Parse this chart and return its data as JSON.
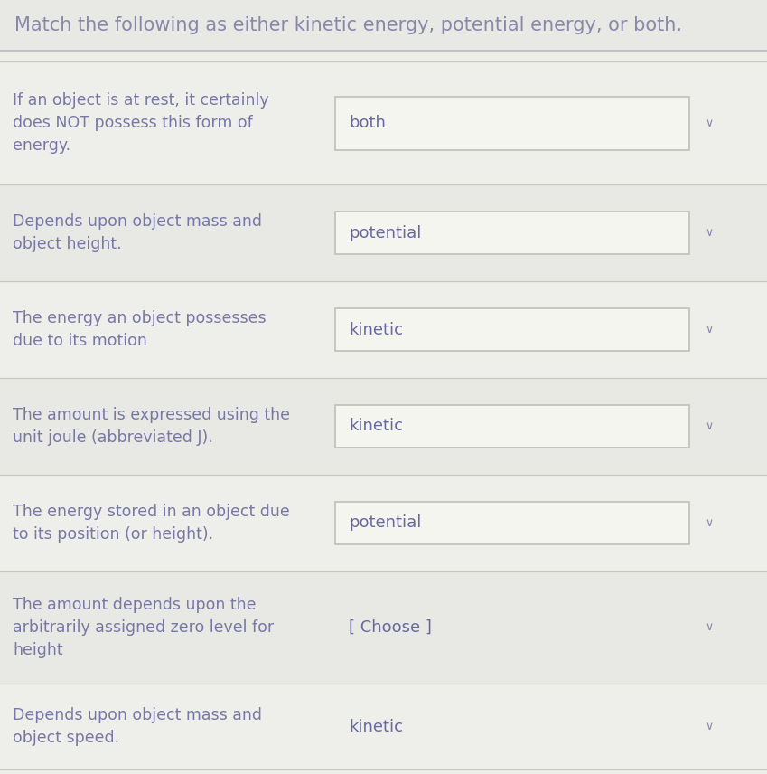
{
  "title": "Match the following as either kinetic energy, potential energy, or both.",
  "title_fontsize": 15,
  "title_color": "#8888aa",
  "bg_main": "#eeeee8",
  "bg_title": "#e8e8e4",
  "bg_row_light": "#eeeeea",
  "bg_row_dark": "#e4e4e0",
  "rows": [
    {
      "question": "If an object is at rest, it certainly\ndoes NOT possess this form of\nenergy.",
      "answer": "both",
      "has_box": true,
      "row_bg": "#eeeeea"
    },
    {
      "question": "Depends upon object mass and\nobject height.",
      "answer": "potential",
      "has_box": true,
      "row_bg": "#e8e8e4"
    },
    {
      "question": "The energy an object possesses\ndue to its motion",
      "answer": "kinetic",
      "has_box": true,
      "row_bg": "#eeeeea"
    },
    {
      "question": "The amount is expressed using the\nunit joule (abbreviated J).",
      "answer": "kinetic",
      "has_box": true,
      "row_bg": "#e8e8e4"
    },
    {
      "question": "The energy stored in an object due\nto its position (or height).",
      "answer": "potential",
      "has_box": true,
      "row_bg": "#eeeeea"
    },
    {
      "question": "The amount depends upon the\narbitrarily assigned zero level for\nheight",
      "answer": "[ Choose ]",
      "has_box": false,
      "row_bg": "#e8e8e4"
    },
    {
      "question": "Depends upon object mass and\nobject speed.",
      "answer": "kinetic",
      "has_box": false,
      "row_bg": "#eeeeea"
    }
  ],
  "question_fontsize": 12.5,
  "answer_fontsize": 13,
  "question_color": "#7878a8",
  "answer_color": "#6868a0",
  "box_fill": "#f5f5f0",
  "box_border": "#c0c0b8",
  "chevron_color": "#8888a8",
  "sep_color": "#c8c8c0",
  "title_sep_color": "#b8b8c0"
}
